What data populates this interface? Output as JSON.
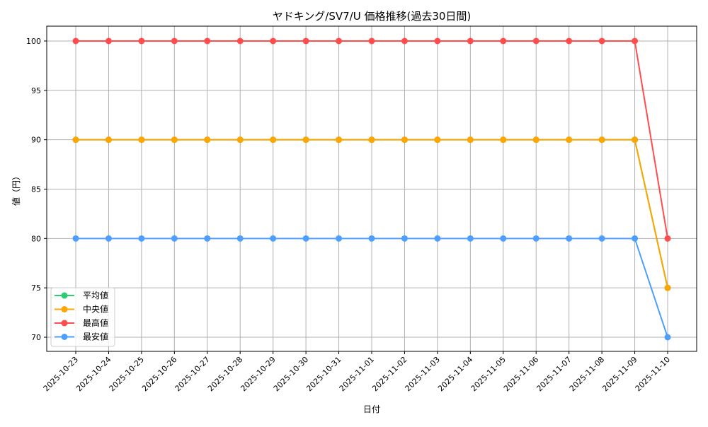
{
  "chart_data": {
    "type": "line",
    "title": "ヤドキング/SV7/U 価格推移(過去30日間)",
    "xlabel": "日付",
    "ylabel": "値（円）",
    "categories": [
      "2025-10-23",
      "2025-10-24",
      "2025-10-25",
      "2025-10-26",
      "2025-10-27",
      "2025-10-28",
      "2025-10-29",
      "2025-10-30",
      "2025-10-31",
      "2025-11-01",
      "2025-11-02",
      "2025-11-03",
      "2025-11-04",
      "2025-11-05",
      "2025-11-06",
      "2025-11-07",
      "2025-11-08",
      "2025-11-09",
      "2025-11-10"
    ],
    "yticks": [
      70,
      75,
      80,
      85,
      90,
      95,
      100
    ],
    "ylim": [
      68.5,
      101.5
    ],
    "grid": true,
    "legend_placement": "lower-left",
    "series": [
      {
        "name": "平均値",
        "color": "#2ecc71",
        "values": [
          90,
          90,
          90,
          90,
          90,
          90,
          90,
          90,
          90,
          90,
          90,
          90,
          90,
          90,
          90,
          90,
          90,
          90,
          75
        ]
      },
      {
        "name": "中央値",
        "color": "#ffa500",
        "values": [
          90,
          90,
          90,
          90,
          90,
          90,
          90,
          90,
          90,
          90,
          90,
          90,
          90,
          90,
          90,
          90,
          90,
          90,
          75
        ]
      },
      {
        "name": "最高値",
        "color": "#ff4d4d",
        "values": [
          100,
          100,
          100,
          100,
          100,
          100,
          100,
          100,
          100,
          100,
          100,
          100,
          100,
          100,
          100,
          100,
          100,
          100,
          80
        ]
      },
      {
        "name": "最安値",
        "color": "#4d9fff",
        "values": [
          80,
          80,
          80,
          80,
          80,
          80,
          80,
          80,
          80,
          80,
          80,
          80,
          80,
          80,
          80,
          80,
          80,
          80,
          70
        ]
      }
    ]
  }
}
